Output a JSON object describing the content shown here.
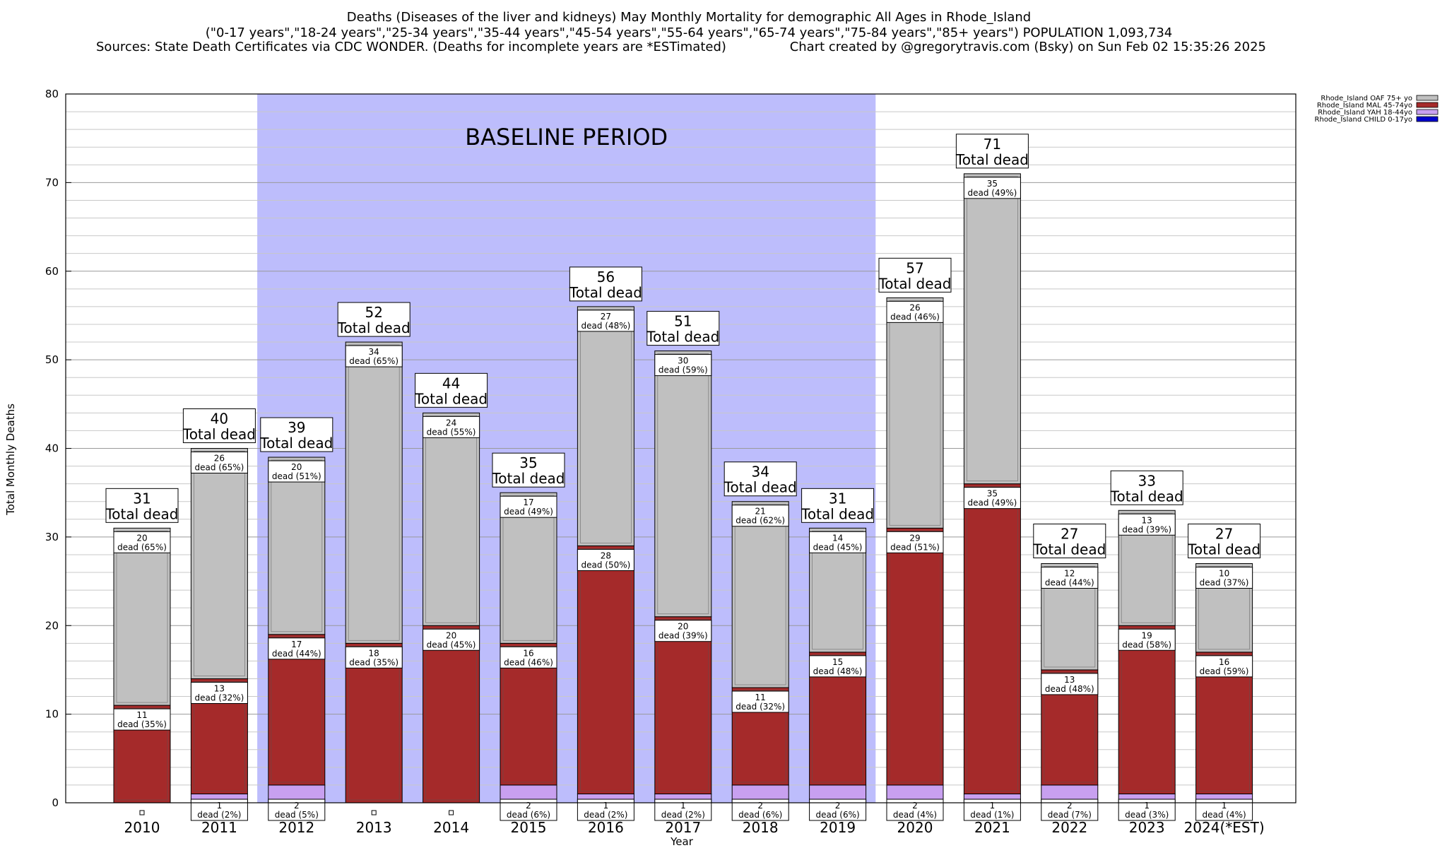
{
  "title": {
    "line1": "Deaths (Diseases of the liver and kidneys) May Monthly Mortality for demographic All Ages in Rhode_Island",
    "line2": "(\"0-17 years\",\"18-24 years\",\"25-34 years\",\"35-44 years\",\"45-54 years\",\"55-64 years\",\"65-74 years\",\"75-84 years\",\"85+ years\") POPULATION 1,093,734",
    "line3_left": "Sources: State Death Certificates via CDC WONDER. (Deaths for incomplete years are *ESTimated)",
    "line3_right": "Chart created by @gregorytravis.com (Bsky) on Sun Feb 02 15:35:26 2025"
  },
  "baseline_label": "BASELINE PERIOD",
  "total_label": "Total dead",
  "dead_word": "dead",
  "colors": {
    "baseline_band": "#bdbdfc",
    "oaf": "#c0c0c0",
    "mal": "#a52a2a",
    "yah": "#c8a0f0",
    "child": "#0000cd"
  },
  "chart_data": {
    "type": "bar",
    "stacked": true,
    "xlabel": "Year",
    "ylabel": "Total Monthly Deaths",
    "ylim": [
      0,
      80
    ],
    "yticks": [
      0,
      10,
      20,
      30,
      40,
      50,
      60,
      70,
      80
    ],
    "grid": true,
    "legend_position": "top-right",
    "baseline_period": [
      "2012",
      "2019"
    ],
    "categories": [
      "2010",
      "2011",
      "2012",
      "2013",
      "2014",
      "2015",
      "2016",
      "2017",
      "2018",
      "2019",
      "2020",
      "2021",
      "2022",
      "2023",
      "2024(*EST)"
    ],
    "totals": [
      31,
      40,
      39,
      52,
      44,
      35,
      56,
      51,
      34,
      31,
      57,
      71,
      27,
      33,
      27
    ],
    "series": [
      {
        "name": "Rhode_Island CHILD 0-17yo",
        "key": "child",
        "values": [
          0,
          0,
          0,
          0,
          0,
          0,
          0,
          0,
          0,
          0,
          0,
          0,
          0,
          0,
          0
        ],
        "pct": [
          null,
          null,
          null,
          null,
          null,
          null,
          null,
          null,
          null,
          null,
          null,
          null,
          null,
          null,
          null
        ]
      },
      {
        "name": "Rhode_Island YAH 18-44yo",
        "key": "yah",
        "values": [
          0,
          1,
          2,
          0,
          0,
          2,
          1,
          1,
          2,
          2,
          2,
          1,
          2,
          1,
          1
        ],
        "pct": [
          null,
          "2%",
          "5%",
          null,
          null,
          "6%",
          "2%",
          "2%",
          "6%",
          "6%",
          "4%",
          "1%",
          "7%",
          "3%",
          "4%"
        ]
      },
      {
        "name": "Rhode_Island MAL 45-74yo",
        "key": "mal",
        "values": [
          11,
          13,
          17,
          18,
          20,
          16,
          28,
          20,
          11,
          15,
          29,
          35,
          13,
          19,
          16
        ],
        "pct": [
          "35%",
          "32%",
          "44%",
          "35%",
          "45%",
          "46%",
          "50%",
          "39%",
          "32%",
          "48%",
          "51%",
          "49%",
          "48%",
          "58%",
          "59%"
        ]
      },
      {
        "name": "Rhode_Island OAF 75+ yo",
        "key": "oaf",
        "values": [
          20,
          26,
          20,
          34,
          24,
          17,
          27,
          30,
          21,
          14,
          26,
          35,
          12,
          13,
          10
        ],
        "pct": [
          "65%",
          "65%",
          "51%",
          "65%",
          "55%",
          "49%",
          "48%",
          "59%",
          "62%",
          "45%",
          "46%",
          "49%",
          "44%",
          "39%",
          "37%"
        ]
      }
    ],
    "legend_order": [
      "oaf",
      "mal",
      "yah",
      "child"
    ]
  }
}
